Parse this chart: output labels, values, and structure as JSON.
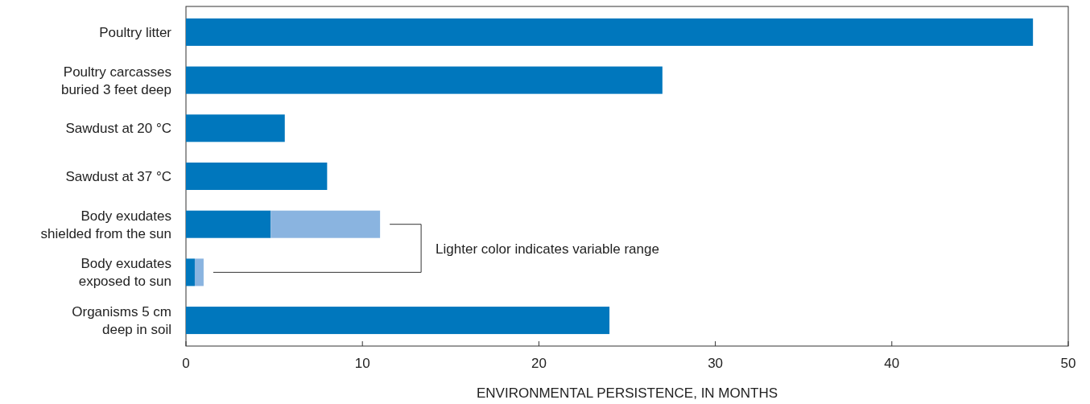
{
  "chart_data": {
    "type": "bar",
    "orientation": "horizontal",
    "stacked": true,
    "categories": [
      "Poultry litter",
      "Poultry carcasses buried 3 feet deep",
      "Sawdust at 20 °C",
      "Sawdust at 37 °C",
      "Body exudates shielded from the sun",
      "Body exudates exposed to sun",
      "Organisms 5 cm deep in soil"
    ],
    "series": [
      {
        "color": "#0077bd",
        "values": [
          48,
          27,
          5.6,
          8,
          4.8,
          0.5,
          24
        ]
      },
      {
        "color": "#8ab4e0",
        "values": [
          null,
          null,
          null,
          null,
          6.2,
          0.5,
          null
        ]
      }
    ],
    "xlabel": "ENVIRONMENTAL PERSISTENCE, IN MONTHS",
    "xlim": [
      0,
      50
    ],
    "xticks": [
      0,
      10,
      20,
      30,
      40,
      50
    ],
    "annotations": [
      "Lighter color indicates variable range"
    ],
    "tick_labels": "x"
  }
}
